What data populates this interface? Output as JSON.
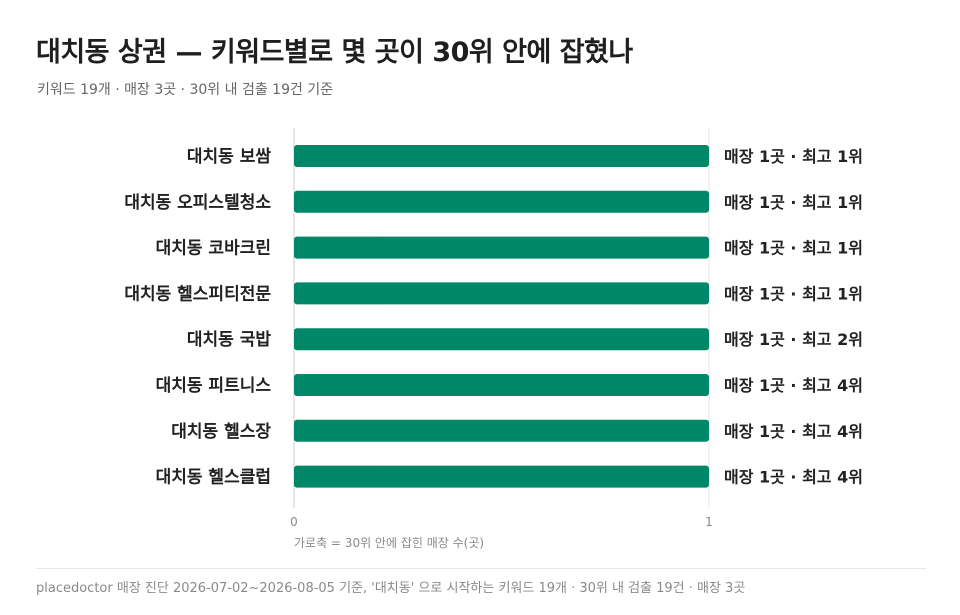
{
  "header": {
    "title": "대치동 상권 — 키워드별로 몇 곳이 30위 안에 잡혔나",
    "subtitle": "키워드 19개 · 매장 3곳 · 30위 내 검출 19건 기준"
  },
  "footer": {
    "text": "placedoctor 매장 진단 2026-07-02~2026-08-05 기준, '대치동' 으로 시작하는 키워드 19개 · 30위 내 검출 19건 · 매장 3곳"
  },
  "colors": {
    "bar": "#008768",
    "axis": "#cccccc",
    "grid": "#e6e6e6"
  },
  "chart_data": {
    "type": "bar",
    "orientation": "horizontal",
    "categories": [
      "대치동 보쌈",
      "대치동 오피스텔청소",
      "대치동 코바크린",
      "대치동 헬스피티전문",
      "대치동 국밥",
      "대치동 피트니스",
      "대치동 헬스장",
      "대치동 헬스클럽"
    ],
    "values": [
      1,
      1,
      1,
      1,
      1,
      1,
      1,
      1
    ],
    "data_labels": [
      "매장 1곳 · 최고 1위",
      "매장 1곳 · 최고 1위",
      "매장 1곳 · 최고 1위",
      "매장 1곳 · 최고 1위",
      "매장 1곳 · 최고 2위",
      "매장 1곳 · 최고 4위",
      "매장 1곳 · 최고 4위",
      "매장 1곳 · 최고 4위"
    ],
    "xlim": [
      0,
      1
    ],
    "xticks": [
      "0",
      "1"
    ],
    "xlabel": "가로축 = 30위 안에 잡힌 매장 수(곳)",
    "grid": true
  }
}
